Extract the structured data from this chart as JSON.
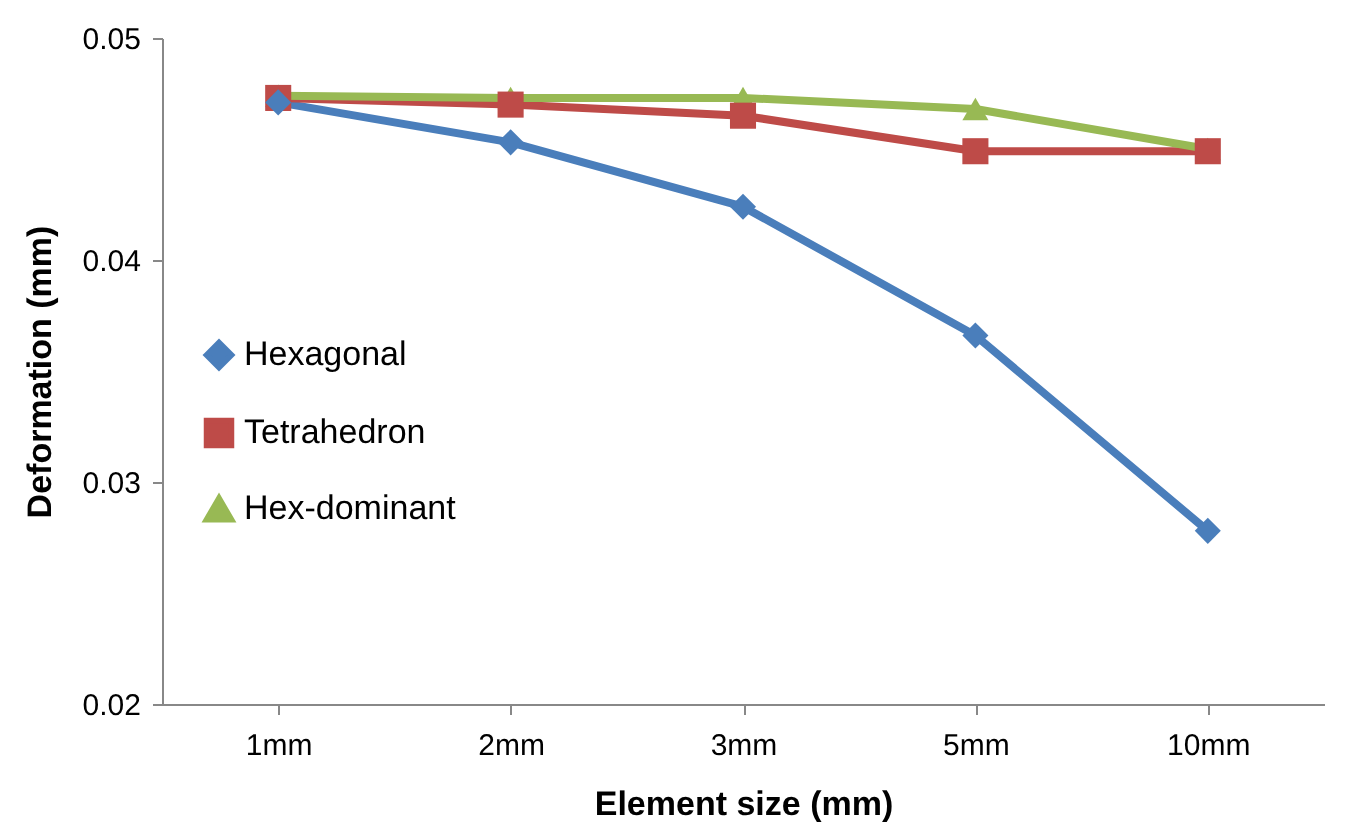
{
  "chart_data": {
    "type": "line",
    "xlabel": "Element size (mm)",
    "ylabel": "Deformation (mm)",
    "categories": [
      "1mm",
      "2mm",
      "3mm",
      "5mm",
      "10mm"
    ],
    "series": [
      {
        "name": "Hexagonal",
        "color": "#4a7ebb",
        "marker": "diamond",
        "values": [
          0.0471,
          0.0453,
          0.0424,
          0.0366,
          0.0278
        ]
      },
      {
        "name": "Tetrahedron",
        "color": "#be4b48",
        "marker": "square",
        "values": [
          0.0473,
          0.047,
          0.0465,
          0.0449,
          0.0449
        ]
      },
      {
        "name": "Hex-dominant",
        "color": "#98b954",
        "marker": "triangle",
        "values": [
          0.0474,
          0.0473,
          0.0473,
          0.0468,
          0.045
        ]
      }
    ],
    "ylim": [
      0.02,
      0.05
    ],
    "yticks": [
      0.02,
      0.03,
      0.04,
      0.05
    ],
    "grid": false,
    "legend": "left",
    "line_style": "solid"
  }
}
